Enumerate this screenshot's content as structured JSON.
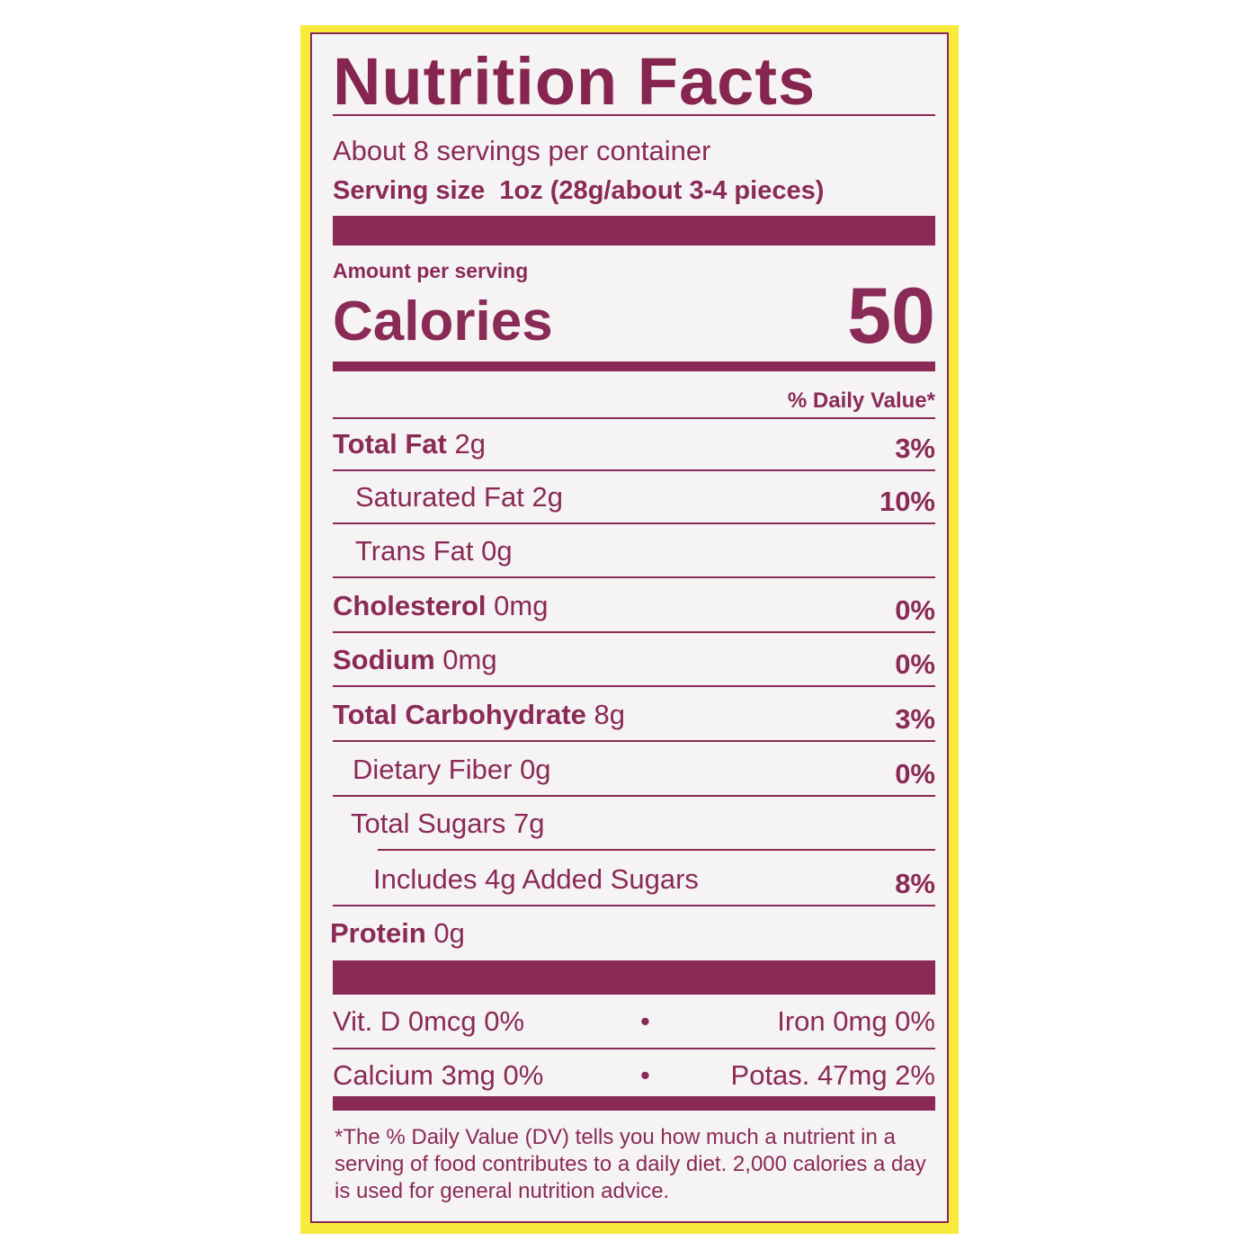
{
  "label": {
    "title": "Nutrition Facts",
    "servings_per_container": "About 8 servings per container",
    "serving_size_label": "Serving size",
    "serving_size_value": "1oz (28g/about 3-4 pieces)",
    "amount_per_serving": "Amount per serving",
    "calories_label": "Calories",
    "calories_value": "50",
    "daily_value_header": "% Daily Value*",
    "nutrients": [
      {
        "name": "Total Fat",
        "amount": "2g",
        "dv": "3%"
      },
      {
        "name": "Saturated Fat",
        "amount": "2g",
        "dv": "10%"
      },
      {
        "name": "Trans Fat",
        "amount": "0g",
        "dv": ""
      },
      {
        "name": "Cholesterol",
        "amount": "0mg",
        "dv": "0%"
      },
      {
        "name": "Sodium",
        "amount": "0mg",
        "dv": "0%"
      },
      {
        "name": "Total Carbohydrate",
        "amount": "8g",
        "dv": "3%"
      },
      {
        "name": "Dietary Fiber",
        "amount": "0g",
        "dv": "0%"
      },
      {
        "name": "Total Sugars",
        "amount": "7g",
        "dv": ""
      },
      {
        "name": "Includes 4g Added Sugars",
        "amount": "",
        "dv": "8%"
      },
      {
        "name": "Protein",
        "amount": "0g",
        "dv": ""
      }
    ],
    "vitamins": [
      {
        "left": "Vit. D 0mcg 0%",
        "right": "Iron 0mg 0%"
      },
      {
        "left": "Calcium 3mg 0%",
        "right": "Potas. 47mg 2%"
      }
    ],
    "separator": "•",
    "footnote": "*The % Daily Value (DV) tells you how much a nutrient in a serving of food contributes to a daily diet. 2,000 calories a day is used for general nutrition advice."
  },
  "colors": {
    "ink": "#8a2a56",
    "background": "#f5f3f4",
    "package": "#f7ea3a"
  }
}
